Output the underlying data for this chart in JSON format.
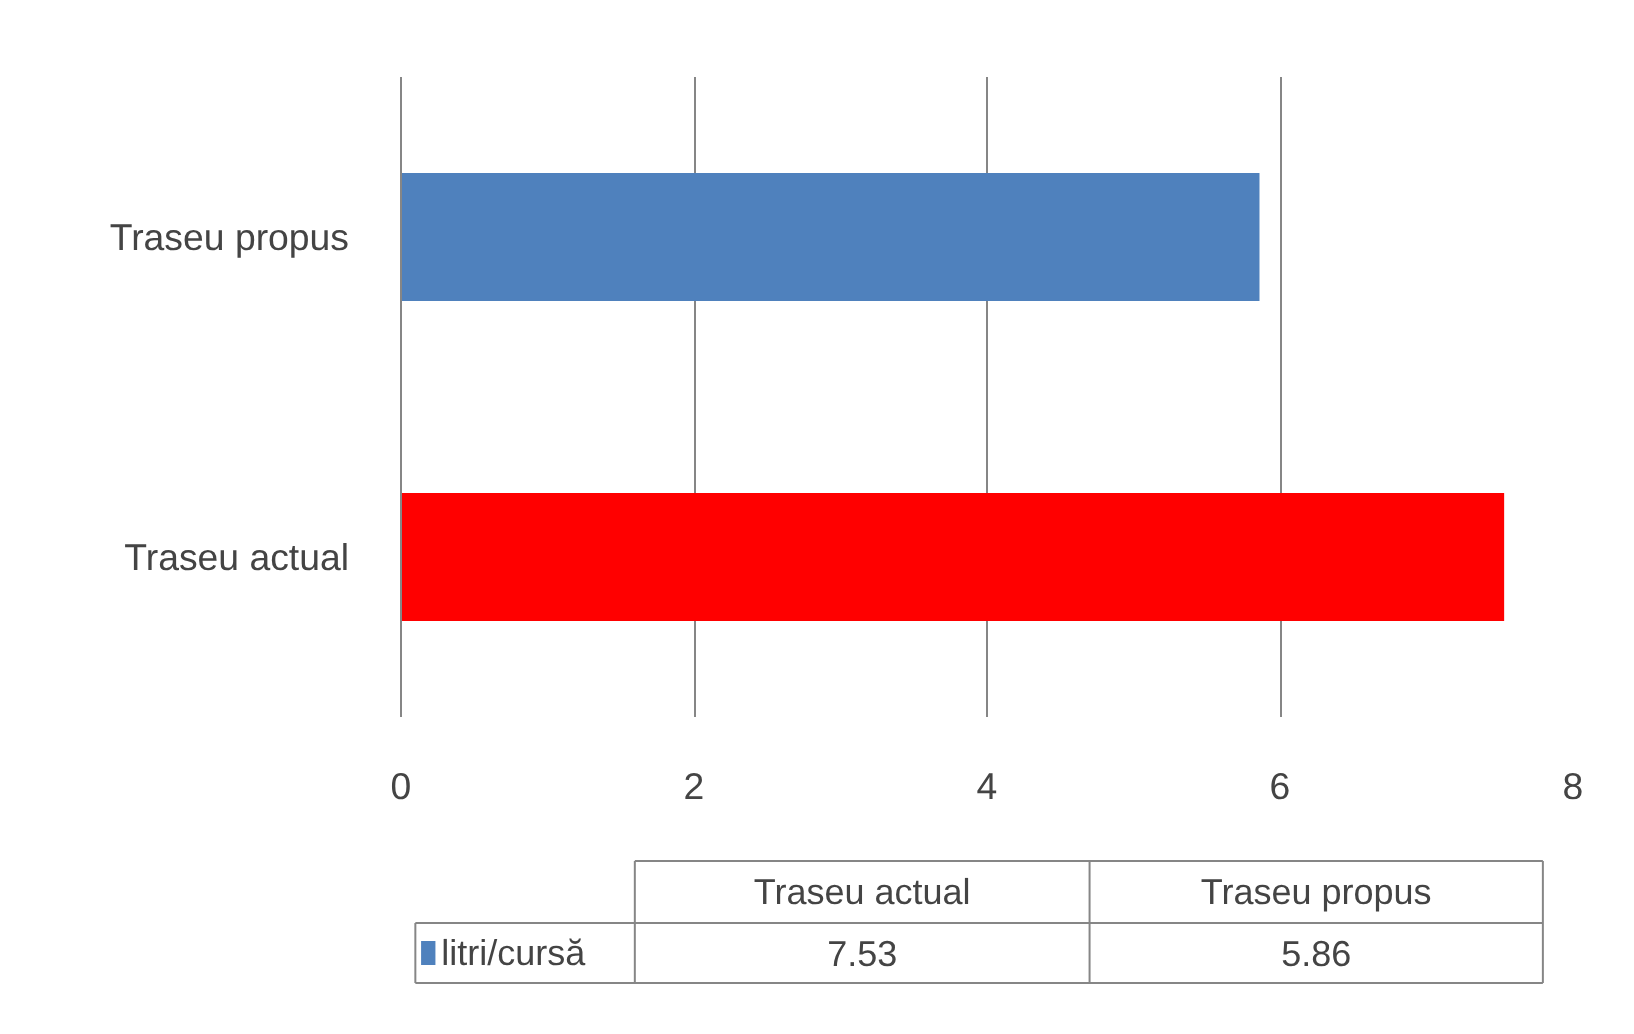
{
  "chart_data": {
    "type": "bar",
    "orientation": "horizontal",
    "categories": [
      "Traseu propus",
      "Traseu actual"
    ],
    "series": [
      {
        "name": "litri/cursă",
        "color": "#4f81bd",
        "colors": [
          "#4f81bd",
          "#ff0000"
        ],
        "values": [
          5.86,
          7.53
        ]
      }
    ],
    "xlim": [
      0,
      8
    ],
    "xticks": [
      0,
      2,
      4,
      6,
      8
    ],
    "grid": "x",
    "legend": "bottom",
    "annotations": [
      "7.53",
      "5.86"
    ]
  }
}
